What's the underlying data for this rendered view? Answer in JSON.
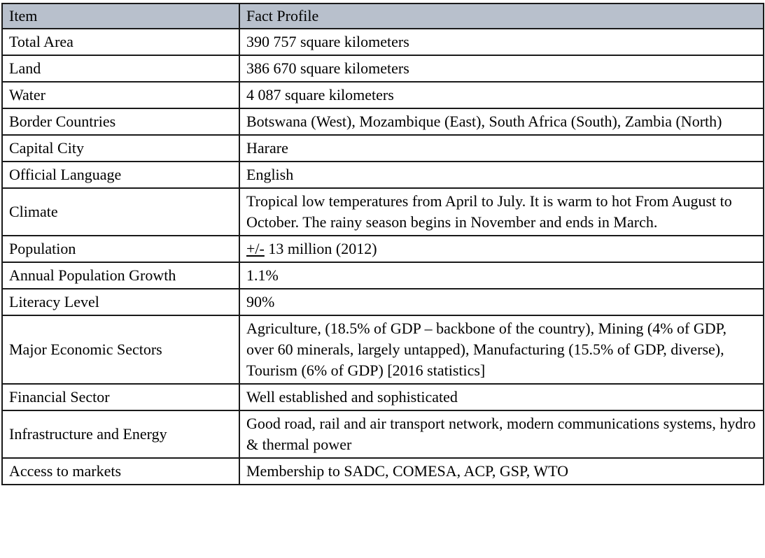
{
  "header": {
    "col_item": "Item",
    "col_profile": "Fact Profile"
  },
  "rows": [
    {
      "item": "Total Area",
      "profile": "390 757 square kilometers"
    },
    {
      "item": "Land",
      "profile": "386 670 square kilometers"
    },
    {
      "item": "Water",
      "profile": "4 087 square kilometers"
    },
    {
      "item": "Border Countries",
      "profile": "Botswana (West), Mozambique (East), South Africa (South), Zambia (North)"
    },
    {
      "item": "Capital City",
      "profile": "Harare"
    },
    {
      "item": "Official Language",
      "profile": "English"
    },
    {
      "item": "Climate",
      "profile": "Tropical low temperatures from April to July. It is warm to hot From August to October. The rainy season begins in November and ends in March."
    },
    {
      "item": "Population",
      "profile_prefix": "+/-",
      "profile": " 13 million (2012)"
    },
    {
      "item": "Annual Population Growth",
      "profile": "1.1%"
    },
    {
      "item": "Literacy Level",
      "profile": "90%"
    },
    {
      "item": "Major Economic Sectors",
      "profile": "Agriculture, (18.5% of GDP – backbone of the country), Mining (4% of GDP, over 60 minerals, largely untapped), Manufacturing (15.5% of GDP, diverse), Tourism (6% of GDP) [2016 statistics]"
    },
    {
      "item": "Financial Sector",
      "profile": "Well established and sophisticated"
    },
    {
      "item": "Infrastructure and Energy",
      "profile": "Good road, rail and air transport network, modern communications systems, hydro & thermal power"
    },
    {
      "item": "Access to markets",
      "profile": "Membership to SADC, COMESA, ACP,  GSP, WTO"
    }
  ],
  "colors": {
    "header_background": "#b8c0cc",
    "border": "#1a1a1a"
  }
}
